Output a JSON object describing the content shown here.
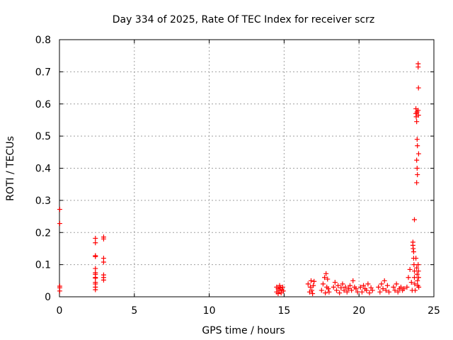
{
  "chart_data": {
    "type": "scatter",
    "title": "Day 334 of 2025, Rate Of TEC Index for receiver scrz",
    "xlabel": "GPS time / hours",
    "ylabel": "ROTI / TECUs",
    "xlim": [
      0,
      25
    ],
    "ylim": [
      0,
      0.8
    ],
    "xticks": [
      0,
      5,
      10,
      15,
      20,
      25
    ],
    "yticks": [
      0,
      0.1,
      0.2,
      0.3,
      0.4,
      0.5,
      0.6,
      0.7,
      0.8
    ],
    "grid": true,
    "marker": "plus",
    "color": "#ff0000",
    "series": [
      {
        "points": [
          [
            0.02,
            0.272
          ],
          [
            0.02,
            0.228
          ],
          [
            0.02,
            0.033
          ],
          [
            0.02,
            0.028
          ],
          [
            0.02,
            0.018
          ],
          [
            2.4,
            0.182
          ],
          [
            2.4,
            0.168
          ],
          [
            2.4,
            0.128
          ],
          [
            2.4,
            0.125
          ],
          [
            2.4,
            0.088
          ],
          [
            2.4,
            0.075
          ],
          [
            2.4,
            0.07
          ],
          [
            2.4,
            0.06
          ],
          [
            2.4,
            0.058
          ],
          [
            2.4,
            0.045
          ],
          [
            2.4,
            0.04
          ],
          [
            2.4,
            0.03
          ],
          [
            2.4,
            0.022
          ],
          [
            2.95,
            0.186
          ],
          [
            2.95,
            0.18
          ],
          [
            2.95,
            0.12
          ],
          [
            2.95,
            0.108
          ],
          [
            2.95,
            0.068
          ],
          [
            2.95,
            0.06
          ],
          [
            2.95,
            0.052
          ],
          [
            14.5,
            0.03
          ],
          [
            14.5,
            0.015
          ],
          [
            14.6,
            0.025
          ],
          [
            14.6,
            0.01
          ],
          [
            14.7,
            0.035
          ],
          [
            14.7,
            0.02
          ],
          [
            14.75,
            0.028
          ],
          [
            14.8,
            0.012
          ],
          [
            14.85,
            0.022
          ],
          [
            14.9,
            0.03
          ],
          [
            14.95,
            0.018
          ],
          [
            16.6,
            0.04
          ],
          [
            16.7,
            0.015
          ],
          [
            16.75,
            0.03
          ],
          [
            16.8,
            0.05
          ],
          [
            16.85,
            0.02
          ],
          [
            16.9,
            0.01
          ],
          [
            16.95,
            0.035
          ],
          [
            17.0,
            0.048
          ],
          [
            17.5,
            0.02
          ],
          [
            17.6,
            0.04
          ],
          [
            17.7,
            0.06
          ],
          [
            17.75,
            0.012
          ],
          [
            17.8,
            0.072
          ],
          [
            17.85,
            0.03
          ],
          [
            17.9,
            0.055
          ],
          [
            17.95,
            0.025
          ],
          [
            18.0,
            0.015
          ],
          [
            18.3,
            0.03
          ],
          [
            18.4,
            0.045
          ],
          [
            18.5,
            0.02
          ],
          [
            18.6,
            0.035
          ],
          [
            18.7,
            0.012
          ],
          [
            18.8,
            0.028
          ],
          [
            18.9,
            0.04
          ],
          [
            19.0,
            0.02
          ],
          [
            19.1,
            0.03
          ],
          [
            19.2,
            0.015
          ],
          [
            19.3,
            0.025
          ],
          [
            19.4,
            0.035
          ],
          [
            19.5,
            0.02
          ],
          [
            19.6,
            0.05
          ],
          [
            19.7,
            0.03
          ],
          [
            19.8,
            0.025
          ],
          [
            19.9,
            0.015
          ],
          [
            20.1,
            0.03
          ],
          [
            20.2,
            0.015
          ],
          [
            20.3,
            0.035
          ],
          [
            20.4,
            0.025
          ],
          [
            20.5,
            0.02
          ],
          [
            20.6,
            0.04
          ],
          [
            20.7,
            0.012
          ],
          [
            20.8,
            0.028
          ],
          [
            20.9,
            0.02
          ],
          [
            21.3,
            0.03
          ],
          [
            21.4,
            0.015
          ],
          [
            21.5,
            0.04
          ],
          [
            21.6,
            0.025
          ],
          [
            21.7,
            0.05
          ],
          [
            21.8,
            0.02
          ],
          [
            21.9,
            0.035
          ],
          [
            22.0,
            0.015
          ],
          [
            22.3,
            0.03
          ],
          [
            22.4,
            0.02
          ],
          [
            22.5,
            0.04
          ],
          [
            22.6,
            0.015
          ],
          [
            22.7,
            0.025
          ],
          [
            22.8,
            0.03
          ],
          [
            22.9,
            0.02
          ],
          [
            23.0,
            0.025
          ],
          [
            23.2,
            0.03
          ],
          [
            23.3,
            0.06
          ],
          [
            23.4,
            0.085
          ],
          [
            23.5,
            0.045
          ],
          [
            23.55,
            0.02
          ],
          [
            23.6,
            0.17
          ],
          [
            23.6,
            0.16
          ],
          [
            23.62,
            0.15
          ],
          [
            23.65,
            0.14
          ],
          [
            23.65,
            0.12
          ],
          [
            23.67,
            0.1
          ],
          [
            23.7,
            0.08
          ],
          [
            23.7,
            0.06
          ],
          [
            23.72,
            0.04
          ],
          [
            23.75,
            0.02
          ],
          [
            23.7,
            0.24
          ],
          [
            23.8,
            0.57
          ],
          [
            23.8,
            0.585
          ],
          [
            23.82,
            0.56
          ],
          [
            23.85,
            0.545
          ],
          [
            23.87,
            0.575
          ],
          [
            23.88,
            0.49
          ],
          [
            23.9,
            0.47
          ],
          [
            23.85,
            0.425
          ],
          [
            23.88,
            0.4
          ],
          [
            23.9,
            0.38
          ],
          [
            23.85,
            0.355
          ],
          [
            23.95,
            0.725
          ],
          [
            23.95,
            0.715
          ],
          [
            23.97,
            0.65
          ],
          [
            23.95,
            0.58
          ],
          [
            23.97,
            0.565
          ],
          [
            23.98,
            0.445
          ],
          [
            23.8,
            0.12
          ],
          [
            23.85,
            0.09
          ],
          [
            23.88,
            0.07
          ],
          [
            23.9,
            0.05
          ],
          [
            23.92,
            0.035
          ],
          [
            23.95,
            0.1
          ],
          [
            23.97,
            0.08
          ],
          [
            23.98,
            0.06
          ],
          [
            23.99,
            0.03
          ]
        ]
      }
    ]
  }
}
